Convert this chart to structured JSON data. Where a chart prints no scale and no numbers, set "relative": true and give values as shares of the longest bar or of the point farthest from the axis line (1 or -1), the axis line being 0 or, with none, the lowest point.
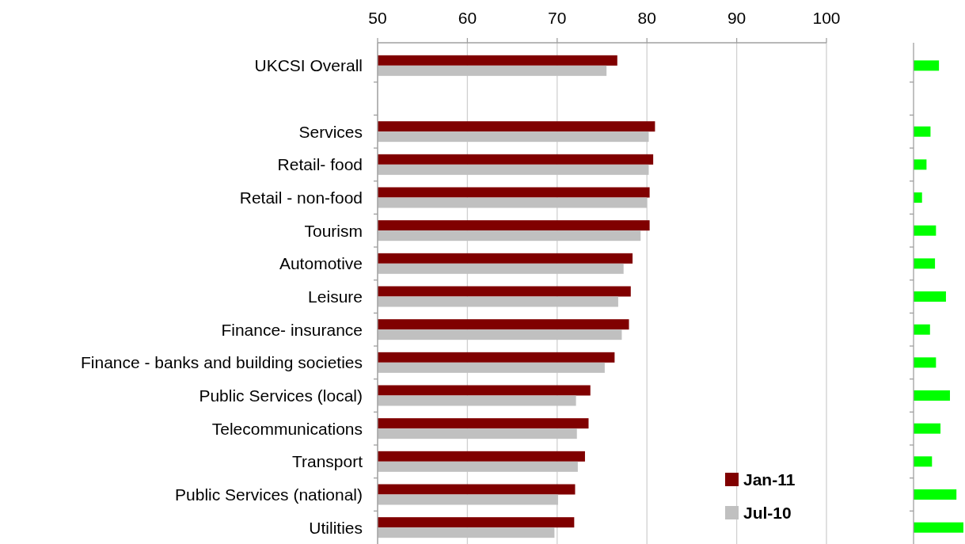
{
  "chart_data": [
    {
      "type": "bar",
      "orientation": "horizontal",
      "categories": [
        "UKCSI Overall",
        null,
        "Services",
        "Retail- food",
        "Retail - non-food",
        "Tourism",
        "Automotive",
        "Leisure",
        "Finance- insurance",
        "Finance - banks and building societies",
        "Public Services (local)",
        "Telecommunications",
        "Transport",
        "Public Services (national)",
        "Utilities"
      ],
      "series": [
        {
          "name": "Jan-11",
          "color": "#800000",
          "values": [
            76.7,
            null,
            80.9,
            80.7,
            80.3,
            80.3,
            78.4,
            78.2,
            78.0,
            76.4,
            73.7,
            73.5,
            73.1,
            72.0,
            71.9
          ]
        },
        {
          "name": "Jul-10",
          "color": "#c0c0c0",
          "values": [
            75.5,
            null,
            80.2,
            80.2,
            80.0,
            79.3,
            77.4,
            76.8,
            77.2,
            75.3,
            72.1,
            72.2,
            72.3,
            70.1,
            69.7
          ]
        }
      ],
      "xlim": [
        50,
        100
      ],
      "xticks": [
        50,
        60,
        70,
        80,
        90,
        100
      ],
      "grid": "x",
      "legend": "bottom right"
    },
    {
      "type": "bar",
      "orientation": "horizontal",
      "relative": true,
      "categories": [
        null,
        null,
        null,
        null,
        null,
        null,
        null,
        null,
        null,
        null,
        null,
        null,
        null,
        null,
        null
      ],
      "values": [
        0.51,
        null,
        0.34,
        0.26,
        0.17,
        0.45,
        0.43,
        0.65,
        0.33,
        0.45,
        0.73,
        0.54,
        0.37,
        0.86,
        1
      ],
      "color": "#00ff00"
    }
  ]
}
